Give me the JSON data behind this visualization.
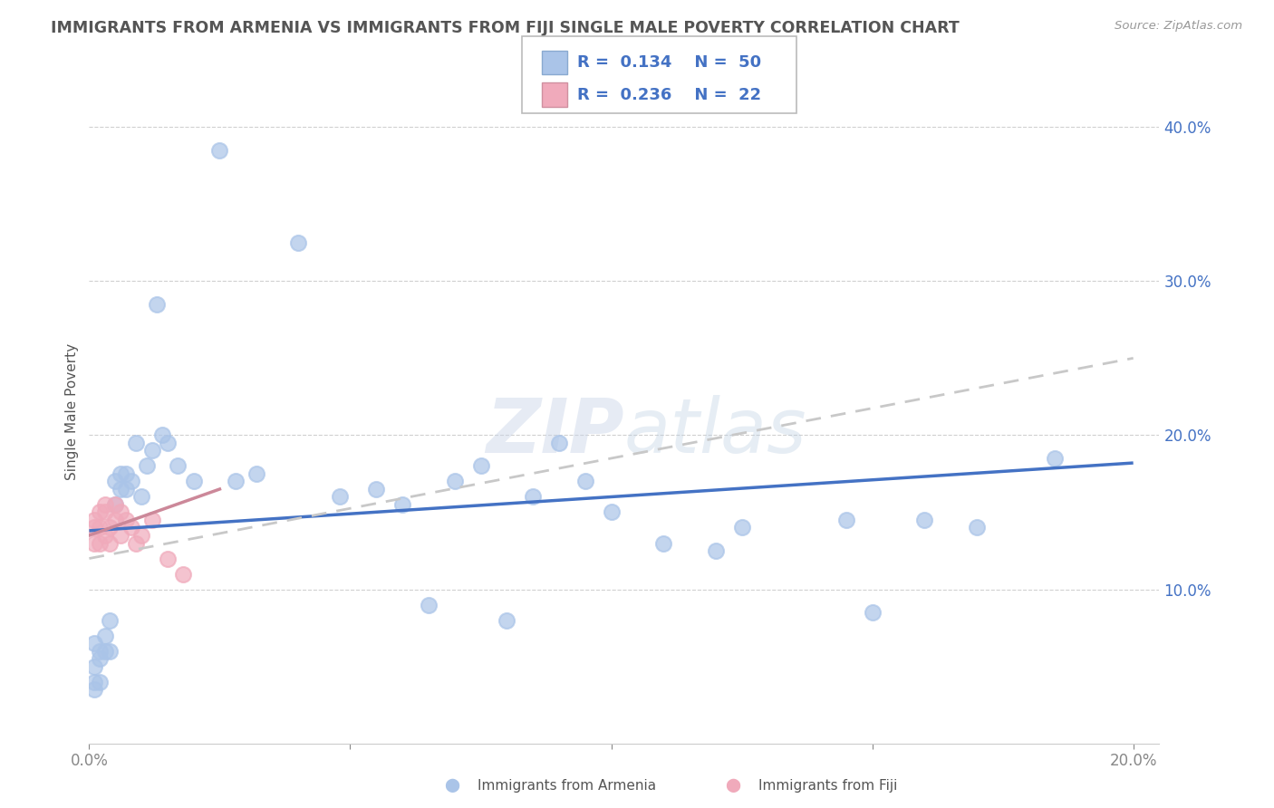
{
  "title": "IMMIGRANTS FROM ARMENIA VS IMMIGRANTS FROM FIJI SINGLE MALE POVERTY CORRELATION CHART",
  "source": "Source: ZipAtlas.com",
  "xlabel_bottom": [
    "Immigrants from Armenia",
    "Immigrants from Fiji"
  ],
  "ylabel": "Single Male Poverty",
  "xlim": [
    0.0,
    0.205
  ],
  "ylim": [
    0.0,
    0.43
  ],
  "xticks": [
    0.0,
    0.05,
    0.1,
    0.15,
    0.2
  ],
  "xtick_labels": [
    "0.0%",
    "",
    "",
    "",
    "20.0%"
  ],
  "yticks": [
    0.1,
    0.2,
    0.3,
    0.4
  ],
  "ytick_labels": [
    "10.0%",
    "20.0%",
    "30.0%",
    "40.0%"
  ],
  "armenia_color": "#aac4e8",
  "fiji_color": "#f0aabb",
  "trendline_armenia_color": "#4472c4",
  "trendline_fiji_color": "#cc8899",
  "trendline_fiji_dashed_color": "#c8c8c8",
  "watermark": "ZIPAtlas",
  "armenia_x": [
    0.001,
    0.001,
    0.001,
    0.001,
    0.002,
    0.002,
    0.002,
    0.003,
    0.003,
    0.004,
    0.004,
    0.005,
    0.005,
    0.006,
    0.006,
    0.007,
    0.007,
    0.008,
    0.009,
    0.01,
    0.011,
    0.012,
    0.013,
    0.014,
    0.015,
    0.017,
    0.02,
    0.025,
    0.028,
    0.032,
    0.04,
    0.048,
    0.055,
    0.065,
    0.075,
    0.085,
    0.095,
    0.11,
    0.125,
    0.145,
    0.06,
    0.07,
    0.08,
    0.09,
    0.1,
    0.12,
    0.15,
    0.16,
    0.17,
    0.185
  ],
  "armenia_y": [
    0.035,
    0.04,
    0.05,
    0.065,
    0.04,
    0.055,
    0.06,
    0.06,
    0.07,
    0.06,
    0.08,
    0.155,
    0.17,
    0.165,
    0.175,
    0.165,
    0.175,
    0.17,
    0.195,
    0.16,
    0.18,
    0.19,
    0.285,
    0.2,
    0.195,
    0.18,
    0.17,
    0.385,
    0.17,
    0.175,
    0.325,
    0.16,
    0.165,
    0.09,
    0.18,
    0.16,
    0.17,
    0.13,
    0.14,
    0.145,
    0.155,
    0.17,
    0.08,
    0.195,
    0.15,
    0.125,
    0.085,
    0.145,
    0.14,
    0.185
  ],
  "fiji_x": [
    0.001,
    0.001,
    0.001,
    0.002,
    0.002,
    0.002,
    0.003,
    0.003,
    0.003,
    0.004,
    0.004,
    0.005,
    0.005,
    0.006,
    0.006,
    0.007,
    0.008,
    0.009,
    0.01,
    0.012,
    0.015,
    0.018
  ],
  "fiji_y": [
    0.13,
    0.14,
    0.145,
    0.13,
    0.14,
    0.15,
    0.135,
    0.15,
    0.155,
    0.13,
    0.14,
    0.145,
    0.155,
    0.135,
    0.15,
    0.145,
    0.14,
    0.13,
    0.135,
    0.145,
    0.12,
    0.11
  ]
}
